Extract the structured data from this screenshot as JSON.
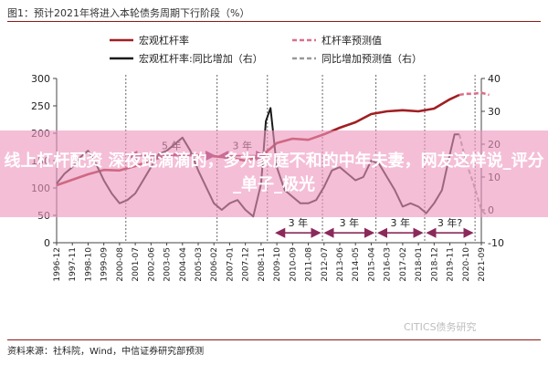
{
  "figure": {
    "title": "图1：预计2021年将进入本轮债务周期下行阶段（%）",
    "source": "资料来源：社科院，Wind，中信证券研究部预测",
    "watermark": "CITICS债务研究"
  },
  "overlay": {
    "text": "线上杠杆配资 深夜跑滴滴的，多为家庭不和的中年夫妻，网友这样说_评分_单子_极光"
  },
  "colors": {
    "leverage": "#a11e22",
    "yoy": "#1a1a1a",
    "leverage_forecast": "#d9708a",
    "yoy_forecast": "#999999",
    "cycle_arrow": "#8b2a5a",
    "banner": "#ee96be"
  },
  "chart_data": {
    "type": "line",
    "x_ticks": [
      "1996-12",
      "1997-11",
      "1998-10",
      "1999-09",
      "2000-08",
      "2001-07",
      "2002-06",
      "2003-05",
      "2004-04",
      "2005-03",
      "2006-02",
      "2007-01",
      "2007-12",
      "2008-11",
      "2009-10",
      "2010-09",
      "2011-08",
      "2012-07",
      "2013-06",
      "2014-05",
      "2015-04",
      "2016-03",
      "2017-02",
      "2018-01",
      "2018-12",
      "2019-11",
      "2020-10",
      "2021-09"
    ],
    "y_left": {
      "min": 0,
      "max": 300,
      "ticks": [
        0,
        50,
        100,
        150,
        200,
        250,
        300
      ]
    },
    "y_right": {
      "min": -10,
      "max": 40,
      "ticks": [
        -10,
        0,
        10,
        20,
        30,
        40
      ]
    },
    "legend": [
      {
        "key": "leverage",
        "label": "宏观杠杆率"
      },
      {
        "key": "leverage_forecast",
        "label": "杠杆率预测值"
      },
      {
        "key": "yoy",
        "label": "宏观杠杆率:同比增加（右）"
      },
      {
        "key": "yoy_forecast",
        "label": "同比增加预测值（右）"
      }
    ],
    "series": [
      {
        "name": "宏观杠杆率",
        "axis": "left",
        "style": "solid",
        "x": [
          0,
          1,
          2,
          3,
          4,
          5,
          6,
          7,
          8,
          9,
          10,
          11,
          12,
          13,
          14,
          15,
          16,
          17,
          18,
          19,
          20,
          21,
          22,
          23,
          24,
          25,
          25.6
        ],
        "y": [
          105,
          115,
          125,
          133,
          132,
          140,
          150,
          160,
          162,
          160,
          158,
          155,
          150,
          158,
          182,
          190,
          188,
          198,
          210,
          220,
          235,
          240,
          242,
          240,
          245,
          262,
          270
        ]
      },
      {
        "name": "杠杆率预测值",
        "axis": "left",
        "style": "dashed",
        "x": [
          25.6,
          26,
          26.5,
          27,
          27.5
        ],
        "y": [
          270,
          272,
          272,
          274,
          270
        ]
      },
      {
        "name": "宏观杠杆率:同比增加（右）",
        "axis": "right",
        "style": "solid",
        "x": [
          0,
          0.5,
          1,
          1.5,
          2,
          2.5,
          3,
          3.5,
          4,
          4.5,
          5,
          5.5,
          6,
          6.5,
          7,
          7.5,
          8,
          8.5,
          9,
          9.5,
          10,
          10.5,
          11,
          11.5,
          12,
          12.5,
          13,
          13.3,
          13.6,
          14,
          14.5,
          15,
          15.5,
          16,
          16.5,
          17,
          17.5,
          18,
          18.5,
          19,
          19.5,
          20,
          20.5,
          21,
          21.5,
          22,
          22.5,
          23,
          23.5,
          24,
          24.5,
          25,
          25.3,
          25.6
        ],
        "y": [
          8,
          11,
          13,
          16,
          18,
          14,
          9,
          5,
          2,
          3,
          5,
          9,
          13,
          17,
          18,
          20,
          22,
          18,
          12,
          7,
          2,
          0,
          2,
          3,
          0,
          -2,
          8,
          27,
          31,
          13,
          6,
          4,
          2,
          2,
          3,
          7,
          12,
          13,
          11,
          9,
          10,
          15,
          14,
          10,
          6,
          1,
          2,
          1,
          -1,
          2,
          6,
          17,
          23,
          23
        ]
      },
      {
        "name": "同比增加预测值（右）",
        "axis": "right",
        "style": "dashed",
        "x": [
          25.6,
          26,
          26.5,
          27,
          27.4
        ],
        "y": [
          23,
          15,
          8,
          0,
          -2
        ]
      }
    ],
    "annotations": [
      {
        "label": "5 年",
        "from": 4.4,
        "to": 10.2,
        "y": 16.5,
        "axis": "right"
      },
      {
        "label": "3 年",
        "from": 10.2,
        "to": 13.4,
        "y": 16.5,
        "axis": "right"
      },
      {
        "label": "3 年",
        "from": 13.8,
        "to": 16.9,
        "y": -7,
        "axis": "right"
      },
      {
        "label": "3 年",
        "from": 16.9,
        "to": 20.3,
        "y": -7,
        "axis": "right"
      },
      {
        "label": "3 年",
        "from": 20.3,
        "to": 23.4,
        "y": -7,
        "axis": "right"
      },
      {
        "label": "3 年?",
        "from": 23.4,
        "to": 26.6,
        "y": -7,
        "axis": "right"
      }
    ],
    "cycle_lines_x": [
      4.4,
      10.2,
      13.4,
      16.9,
      20.3,
      23.4,
      26.6
    ],
    "grid": false,
    "legend_position": "top"
  }
}
